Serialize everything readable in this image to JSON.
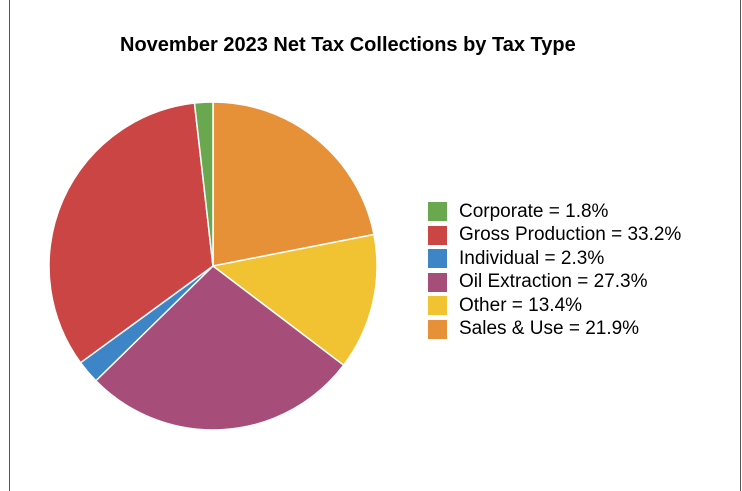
{
  "chart_data": {
    "type": "pie",
    "title": "November 2023 Net Tax Collections by Tax Type",
    "slices": [
      {
        "name": "Corporate",
        "value": 1.8,
        "color": "#6aa84f",
        "legend_label": "Corporate = 1.8%"
      },
      {
        "name": "Gross Production",
        "value": 33.2,
        "color": "#cc4545",
        "legend_label": "Gross Production = 33.2%"
      },
      {
        "name": "Individual",
        "value": 2.3,
        "color": "#3d85c6",
        "legend_label": "Individual = 2.3%"
      },
      {
        "name": "Oil Extraction",
        "value": 27.3,
        "color": "#a64d79",
        "legend_label": "Oil Extraction = 27.3%"
      },
      {
        "name": "Other",
        "value": 13.4,
        "color": "#f1c232",
        "legend_label": "Other = 13.4%"
      },
      {
        "name": "Sales & Use",
        "value": 21.9,
        "color": "#e69138",
        "legend_label": "Sales & Use = 21.9%"
      }
    ],
    "start": "12 o'clock",
    "direction": "clockwise, starting with Sales & Use",
    "legend_position": "right"
  }
}
